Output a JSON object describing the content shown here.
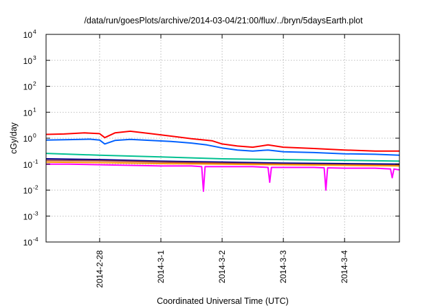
{
  "chart_data": {
    "type": "line",
    "title": "/data/run/goesPlots/archive/2014-03-04/21:00/flux/../bryn/5daysEarth.plot",
    "xlabel": "Coordinated Universal Time (UTC)",
    "ylabel": "cGy/day",
    "xlim": [
      "2014-02-27 03:00",
      "2014-03-04 21:30"
    ],
    "ylim": [
      0.0001,
      10000
    ],
    "y_scale": "log",
    "grid": true,
    "x_ticks": [
      "2014-2-28",
      "2014-3-1",
      "2014-3-2",
      "2014-3-3",
      "2014-3-4"
    ],
    "x_tick_values": [
      "2014-02-28 00:00",
      "2014-03-01 00:00",
      "2014-03-02 00:00",
      "2014-03-03 00:00",
      "2014-03-04 00:00"
    ],
    "y_ticks": [
      {
        "base": "10",
        "exp": "-4",
        "value": 0.0001
      },
      {
        "base": "10",
        "exp": "-3",
        "value": 0.001
      },
      {
        "base": "10",
        "exp": "-2",
        "value": 0.01
      },
      {
        "base": "10",
        "exp": "-1",
        "value": 0.1
      },
      {
        "base": "10",
        "exp": "0",
        "value": 1
      },
      {
        "base": "10",
        "exp": "1",
        "value": 10
      },
      {
        "base": "10",
        "exp": "2",
        "value": 100
      },
      {
        "base": "10",
        "exp": "3",
        "value": 1000
      },
      {
        "base": "10",
        "exp": "4",
        "value": 10000
      }
    ],
    "series": [
      {
        "color": "#ff0000",
        "x": [
          "2014-02-27 03:00",
          "2014-02-27 10:00",
          "2014-02-27 18:00",
          "2014-02-28 00:00",
          "2014-02-28 02:00",
          "2014-02-28 06:00",
          "2014-02-28 12:00",
          "2014-02-28 20:00",
          "2014-03-01 04:00",
          "2014-03-01 12:00",
          "2014-03-01 20:00",
          "2014-03-02 00:00",
          "2014-03-02 06:00",
          "2014-03-02 12:00",
          "2014-03-02 18:00",
          "2014-03-03 00:00",
          "2014-03-03 12:00",
          "2014-03-04 00:00",
          "2014-03-04 12:00",
          "2014-03-04 21:30"
        ],
        "y": [
          1.4,
          1.45,
          1.6,
          1.5,
          1.05,
          1.6,
          1.85,
          1.5,
          1.2,
          0.95,
          0.8,
          0.6,
          0.5,
          0.45,
          0.55,
          0.45,
          0.4,
          0.35,
          0.32,
          0.32
        ]
      },
      {
        "color": "#0060ff",
        "x": [
          "2014-02-27 03:00",
          "2014-02-27 12:00",
          "2014-02-27 20:00",
          "2014-02-28 00:00",
          "2014-02-28 02:00",
          "2014-02-28 06:00",
          "2014-02-28 12:00",
          "2014-02-28 20:00",
          "2014-03-01 04:00",
          "2014-03-01 12:00",
          "2014-03-01 18:00",
          "2014-03-02 00:00",
          "2014-03-02 06:00",
          "2014-03-02 12:00",
          "2014-03-02 18:00",
          "2014-03-03 00:00",
          "2014-03-03 12:00",
          "2014-03-04 00:00",
          "2014-03-04 12:00",
          "2014-03-04 21:30"
        ],
        "y": [
          0.85,
          0.88,
          0.92,
          0.85,
          0.6,
          0.82,
          0.9,
          0.82,
          0.75,
          0.65,
          0.55,
          0.42,
          0.35,
          0.32,
          0.35,
          0.3,
          0.28,
          0.25,
          0.24,
          0.22
        ]
      },
      {
        "color": "#00c090",
        "x": [
          "2014-02-27 03:00",
          "2014-02-28 00:00",
          "2014-03-01 00:00",
          "2014-03-02 00:00",
          "2014-03-03 00:00",
          "2014-03-04 00:00",
          "2014-03-04 21:30"
        ],
        "y": [
          0.26,
          0.22,
          0.19,
          0.16,
          0.15,
          0.14,
          0.13
        ]
      },
      {
        "color": "#000090",
        "x": [
          "2014-02-27 03:00",
          "2014-02-28 00:00",
          "2014-03-01 00:00",
          "2014-03-02 00:00",
          "2014-03-03 00:00",
          "2014-03-04 00:00",
          "2014-03-04 21:30"
        ],
        "y": [
          0.16,
          0.15,
          0.13,
          0.12,
          0.11,
          0.105,
          0.1
        ]
      },
      {
        "color": "#a04040",
        "x": [
          "2014-02-27 03:00",
          "2014-02-28 00:00",
          "2014-03-01 00:00",
          "2014-03-02 00:00",
          "2014-03-03 00:00",
          "2014-03-04 00:00",
          "2014-03-04 21:30"
        ],
        "y": [
          0.14,
          0.135,
          0.12,
          0.11,
          0.1,
          0.095,
          0.09
        ]
      },
      {
        "color": "#ff9900",
        "x": [
          "2014-02-27 03:00",
          "2014-02-28 00:00",
          "2014-03-01 00:00",
          "2014-03-02 00:00",
          "2014-03-03 00:00",
          "2014-03-04 00:00",
          "2014-03-04 21:30"
        ],
        "y": [
          0.12,
          0.115,
          0.105,
          0.1,
          0.095,
          0.09,
          0.085
        ]
      },
      {
        "color": "#ff00ff",
        "x": [
          "2014-02-27 03:00",
          "2014-02-27 12:00",
          "2014-02-28 00:00",
          "2014-02-28 12:00",
          "2014-03-01 00:00",
          "2014-03-01 12:00",
          "2014-03-01 16:00",
          "2014-03-01 16:40",
          "2014-03-01 17:20",
          "2014-03-02 00:00",
          "2014-03-02 12:00",
          "2014-03-02 18:00",
          "2014-03-02 18:40",
          "2014-03-02 19:20",
          "2014-03-03 00:00",
          "2014-03-03 12:00",
          "2014-03-03 16:00",
          "2014-03-03 16:40",
          "2014-03-03 17:20",
          "2014-03-04 00:00",
          "2014-03-04 12:00",
          "2014-03-04 18:00",
          "2014-03-04 18:40",
          "2014-03-04 19:20",
          "2014-03-04 21:30"
        ],
        "y": [
          0.1,
          0.1,
          0.095,
          0.09,
          0.085,
          0.085,
          0.08,
          0.009,
          0.08,
          0.08,
          0.08,
          0.075,
          0.02,
          0.075,
          0.075,
          0.075,
          0.072,
          0.01,
          0.072,
          0.07,
          0.07,
          0.065,
          0.03,
          0.065,
          0.06
        ]
      }
    ]
  }
}
